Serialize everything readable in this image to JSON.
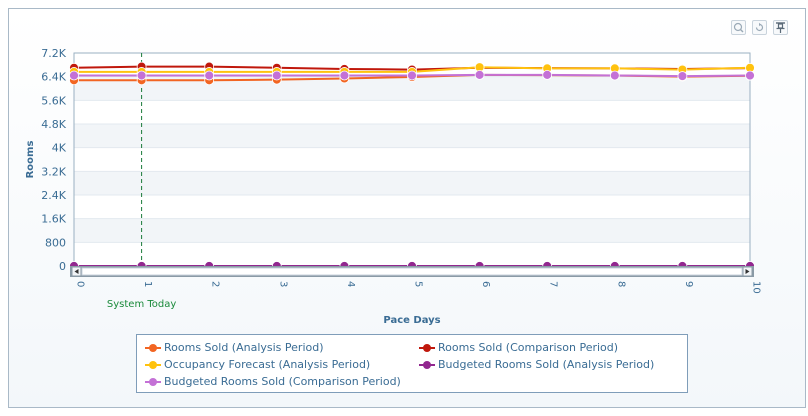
{
  "toolbar": {
    "buttons": [
      {
        "name": "zoom-icon"
      },
      {
        "name": "reset-icon"
      },
      {
        "name": "pin-icon"
      }
    ]
  },
  "chart_data": {
    "type": "line",
    "x": [
      0,
      1,
      2,
      3,
      4,
      5,
      6,
      7,
      8,
      9,
      10
    ],
    "xlabel": "Pace Days",
    "ylabel": "Rooms",
    "ylim": [
      0,
      7200
    ],
    "y_ticks": [
      0,
      800,
      1600,
      2400,
      3200,
      4000,
      4800,
      5600,
      6400,
      7200
    ],
    "y_tick_labels": [
      "0",
      "800",
      "1.6K",
      "2.4K",
      "3.2K",
      "4K",
      "4.8K",
      "5.6K",
      "6.4K",
      "7.2K"
    ],
    "x_tick_labels": [
      "0",
      "1",
      "2",
      "3",
      "4",
      "5",
      "6",
      "7",
      "8",
      "9",
      "10"
    ],
    "annotation": {
      "x": 1,
      "label": "System Today",
      "color": "#1a8a3a"
    },
    "legend_position": "bottom",
    "grid": true,
    "series": [
      {
        "name": "Rooms Sold (Analysis Period)",
        "color": "#f26522",
        "values": [
          6280,
          6280,
          6280,
          6300,
          6340,
          6390,
          6460,
          6450,
          6440,
          6400,
          6430
        ]
      },
      {
        "name": "Rooms Sold (Comparison Period)",
        "color": "#c0180c",
        "values": [
          6700,
          6740,
          6740,
          6700,
          6660,
          6640,
          6700,
          6690,
          6680,
          6660,
          6690
        ]
      },
      {
        "name": "Occupancy Forecast (Analysis Period)",
        "color": "#ffc20e",
        "values": [
          6560,
          6560,
          6560,
          6560,
          6560,
          6560,
          6720,
          6680,
          6680,
          6640,
          6700
        ]
      },
      {
        "name": "Budgeted Rooms Sold (Analysis Period)",
        "color": "#92278f",
        "values": [
          0,
          0,
          0,
          0,
          0,
          0,
          0,
          0,
          0,
          0,
          0
        ]
      },
      {
        "name": "Budgeted Rooms Sold (Comparison Period)",
        "color": "#c471d6",
        "values": [
          6440,
          6440,
          6440,
          6440,
          6440,
          6440,
          6460,
          6460,
          6440,
          6420,
          6440
        ]
      }
    ]
  }
}
